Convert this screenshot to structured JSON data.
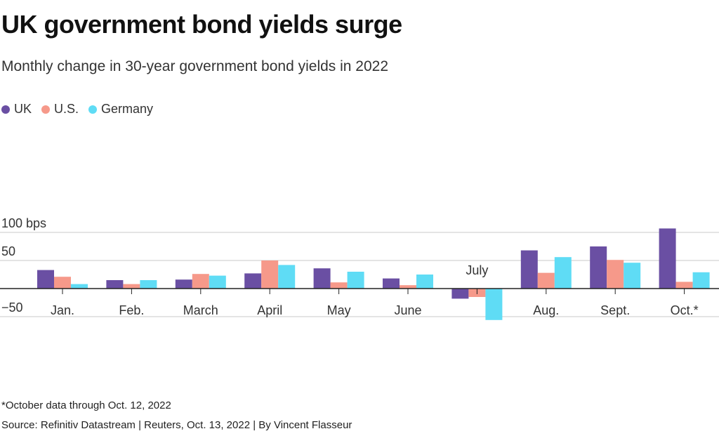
{
  "header": {
    "title": "UK government bond yields surge",
    "subtitle": "Monthly change in 30-year government bond yields in 2022"
  },
  "footer": {
    "footnote": "*October data through Oct. 12, 2022",
    "source": "Source: Refinitiv Datastream | Reuters, Oct. 13, 2022 | By Vincent Flasseur"
  },
  "colors": {
    "UK": "#6a4fa3",
    "U.S.": "#f6998a",
    "Germany": "#5fdcf5",
    "grid": "#c8c8c8",
    "axis": "#222222"
  },
  "chart_data": {
    "type": "bar",
    "title": "UK government bond yields surge",
    "subtitle": "Monthly change in 30-year government bond yields in 2022",
    "xlabel": "",
    "ylabel": "",
    "categories": [
      "Jan.",
      "Feb.",
      "March",
      "April",
      "May",
      "June",
      "July",
      "Aug.",
      "Sept.",
      "Oct.*"
    ],
    "series": [
      {
        "name": "UK",
        "values": [
          33,
          15,
          16,
          27,
          36,
          18,
          -18,
          68,
          75,
          107
        ]
      },
      {
        "name": "U.S.",
        "values": [
          21,
          8,
          26,
          50,
          11,
          6,
          -15,
          28,
          51,
          12
        ]
      },
      {
        "name": "Germany",
        "values": [
          8,
          15,
          23,
          42,
          30,
          25,
          -56,
          56,
          46,
          29
        ]
      }
    ],
    "ylim": [
      -55,
      110
    ],
    "yticks": [
      -50,
      50,
      100
    ],
    "ytick_labels": [
      "−50",
      "50",
      "100 bps"
    ],
    "legend_position": "top-left",
    "grid": true
  }
}
